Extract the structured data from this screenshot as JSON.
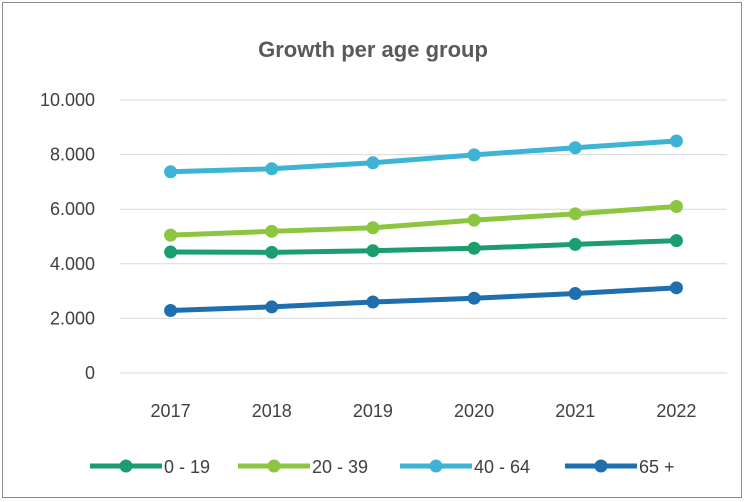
{
  "chart_data": {
    "type": "line",
    "title": "Growth per age group",
    "xlabel": "",
    "ylabel": "",
    "categories": [
      "2017",
      "2018",
      "2019",
      "2020",
      "2021",
      "2022"
    ],
    "ylim": [
      0,
      10000
    ],
    "yticks": [
      0,
      2000,
      4000,
      6000,
      8000,
      10000
    ],
    "ytick_labels": [
      "0",
      "2.000",
      "4.000",
      "6.000",
      "8.000",
      "10.000"
    ],
    "grid": true,
    "legend_position": "bottom",
    "series": [
      {
        "name": "0 - 19",
        "color": "#1a9e6e",
        "values": [
          4430,
          4420,
          4480,
          4570,
          4710,
          4850
        ]
      },
      {
        "name": "20 - 39",
        "color": "#8cc540",
        "values": [
          5050,
          5190,
          5320,
          5600,
          5830,
          6100
        ]
      },
      {
        "name": "40 - 64",
        "color": "#3db3d6",
        "values": [
          7370,
          7480,
          7700,
          7990,
          8250,
          8500
        ]
      },
      {
        "name": "65 +",
        "color": "#1f6faf",
        "values": [
          2290,
          2420,
          2600,
          2740,
          2910,
          3120
        ]
      }
    ]
  }
}
